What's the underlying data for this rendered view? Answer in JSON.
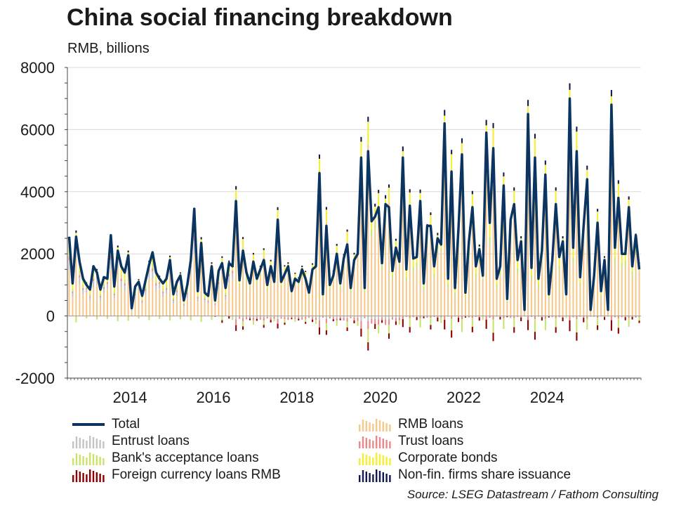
{
  "chart_data": {
    "type": "bar",
    "title": "China social financing breakdown",
    "subtitle": "RMB, billions",
    "source": "Source: LSEG Datastream / Fathom Consulting",
    "x_start": "2013-01",
    "frequency": "monthly",
    "xticks": [
      "2014",
      "2016",
      "2018",
      "2020",
      "2022",
      "2024"
    ],
    "ylim": [
      -2000,
      8000
    ],
    "yticks": [
      -2000,
      0,
      2000,
      4000,
      6000,
      8000
    ],
    "grid": true,
    "legend_position": "bottom",
    "stacked_series": [
      {
        "name": "RMB loans",
        "color": "#f6c88b",
        "key": "rmb"
      },
      {
        "name": "Entrust loans",
        "color": "#c4c4c4",
        "key": "entrust"
      },
      {
        "name": "Trust loans",
        "color": "#e88a8a",
        "key": "trust"
      },
      {
        "name": "Bank's acceptance loans",
        "color": "#c9e36b",
        "key": "acceptance"
      },
      {
        "name": "Corporate bonds",
        "color": "#f7ee33",
        "key": "bonds"
      },
      {
        "name": "Foreign currency loans RMB",
        "color": "#8b0000",
        "key": "fx"
      },
      {
        "name": "Non-fin. firms share issuance",
        "color": "#14194d",
        "key": "equity"
      }
    ],
    "line_series": {
      "name": "Total",
      "color": "#0b3560",
      "key": "total"
    },
    "legend_order": [
      [
        "Total",
        "RMB loans"
      ],
      [
        "Entrust loans",
        "Trust loans"
      ],
      [
        "Bank's acceptance loans",
        "Corporate bonds"
      ],
      [
        "Foreign currency loans RMB",
        "Non-fin. firms share issuance"
      ]
    ],
    "total": [
      2550,
      1050,
      2550,
      1750,
      1200,
      1000,
      850,
      1600,
      1400,
      850,
      1250,
      1200,
      2600,
      950,
      2100,
      1600,
      1400,
      1950,
      250,
      950,
      1100,
      650,
      1150,
      1650,
      2050,
      1400,
      1200,
      1050,
      1200,
      1800,
      700,
      1100,
      1300,
      500,
      1000,
      1800,
      3450,
      800,
      2350,
      750,
      650,
      1600,
      500,
      1450,
      1700,
      900,
      1700,
      1600,
      3700,
      1150,
      2100,
      1400,
      1050,
      1750,
      1200,
      1500,
      1800,
      1000,
      1600,
      1100,
      3100,
      1100,
      1350,
      1600,
      800,
      1200,
      1100,
      1500,
      1200,
      750,
      1500,
      1600,
      4600,
      700,
      2900,
      1000,
      1300,
      2000,
      1050,
      1850,
      2300,
      900,
      1800,
      2000,
      5100,
      900,
      5300,
      3050,
      3200,
      3500,
      1700,
      3600,
      3500,
      1450,
      2200,
      1750,
      5100,
      1500,
      3550,
      1850,
      1900,
      3700,
      1050,
      2900,
      2900,
      1600,
      2500,
      2300,
      6200,
      1200,
      4650,
      900,
      2800,
      5200,
      750,
      2400,
      3500,
      1600,
      2150,
      1300,
      5900,
      3000,
      5400,
      1200,
      1600,
      4200,
      550,
      3100,
      3600,
      1800,
      2400,
      200,
      6500,
      1550,
      5100,
      1200,
      2100,
      4550,
      700,
      1800,
      3600,
      1900,
      2400,
      700,
      7000,
      2200,
      5300,
      1250,
      2900,
      4400,
      200,
      1300,
      3000,
      800,
      1800,
      200,
      6800,
      2200,
      3800,
      2000,
      2000,
      3500,
      1600,
      2600,
      1500
    ]
  }
}
